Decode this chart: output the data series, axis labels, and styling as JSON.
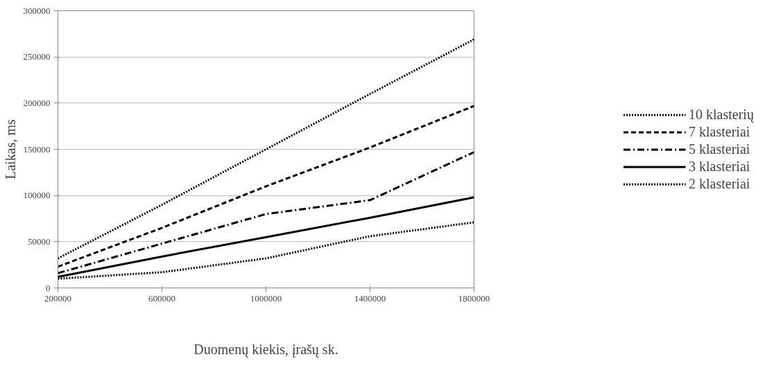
{
  "chart_data": {
    "type": "line",
    "xlabel": "Duomenų kiekis, įrašų sk.",
    "ylabel": "Laikas, ms",
    "x": [
      200000,
      600000,
      1000000,
      1400000,
      1800000
    ],
    "series": [
      {
        "name": "10 klasterių",
        "color": "#000000",
        "line_style": "dotted",
        "values": [
          32000,
          90000,
          150000,
          210000,
          269000
        ]
      },
      {
        "name": "7 klasteriai",
        "color": "#000000",
        "line_style": "dashed",
        "values": [
          23000,
          65000,
          110000,
          152000,
          197000
        ]
      },
      {
        "name": "5 klasteriai",
        "color": "#000000",
        "line_style": "dashdot",
        "values": [
          16000,
          48000,
          80000,
          95000,
          147000
        ]
      },
      {
        "name": "3 klasteriai",
        "color": "#000000",
        "line_style": "solid",
        "values": [
          12000,
          34000,
          55000,
          76000,
          98000
        ]
      },
      {
        "name": "2 klasteriai",
        "color": "#000000",
        "line_style": "dotted",
        "values": [
          10000,
          17000,
          32000,
          56000,
          71000
        ]
      }
    ],
    "xlim": [
      200000,
      1800000
    ],
    "xticks": [
      200000,
      600000,
      1000000,
      1400000,
      1800000
    ],
    "ylim": [
      0,
      300000
    ],
    "yticks": [
      0,
      50000,
      100000,
      150000,
      200000,
      250000,
      300000
    ],
    "grid": "y",
    "legend": "right",
    "marker": "none"
  }
}
